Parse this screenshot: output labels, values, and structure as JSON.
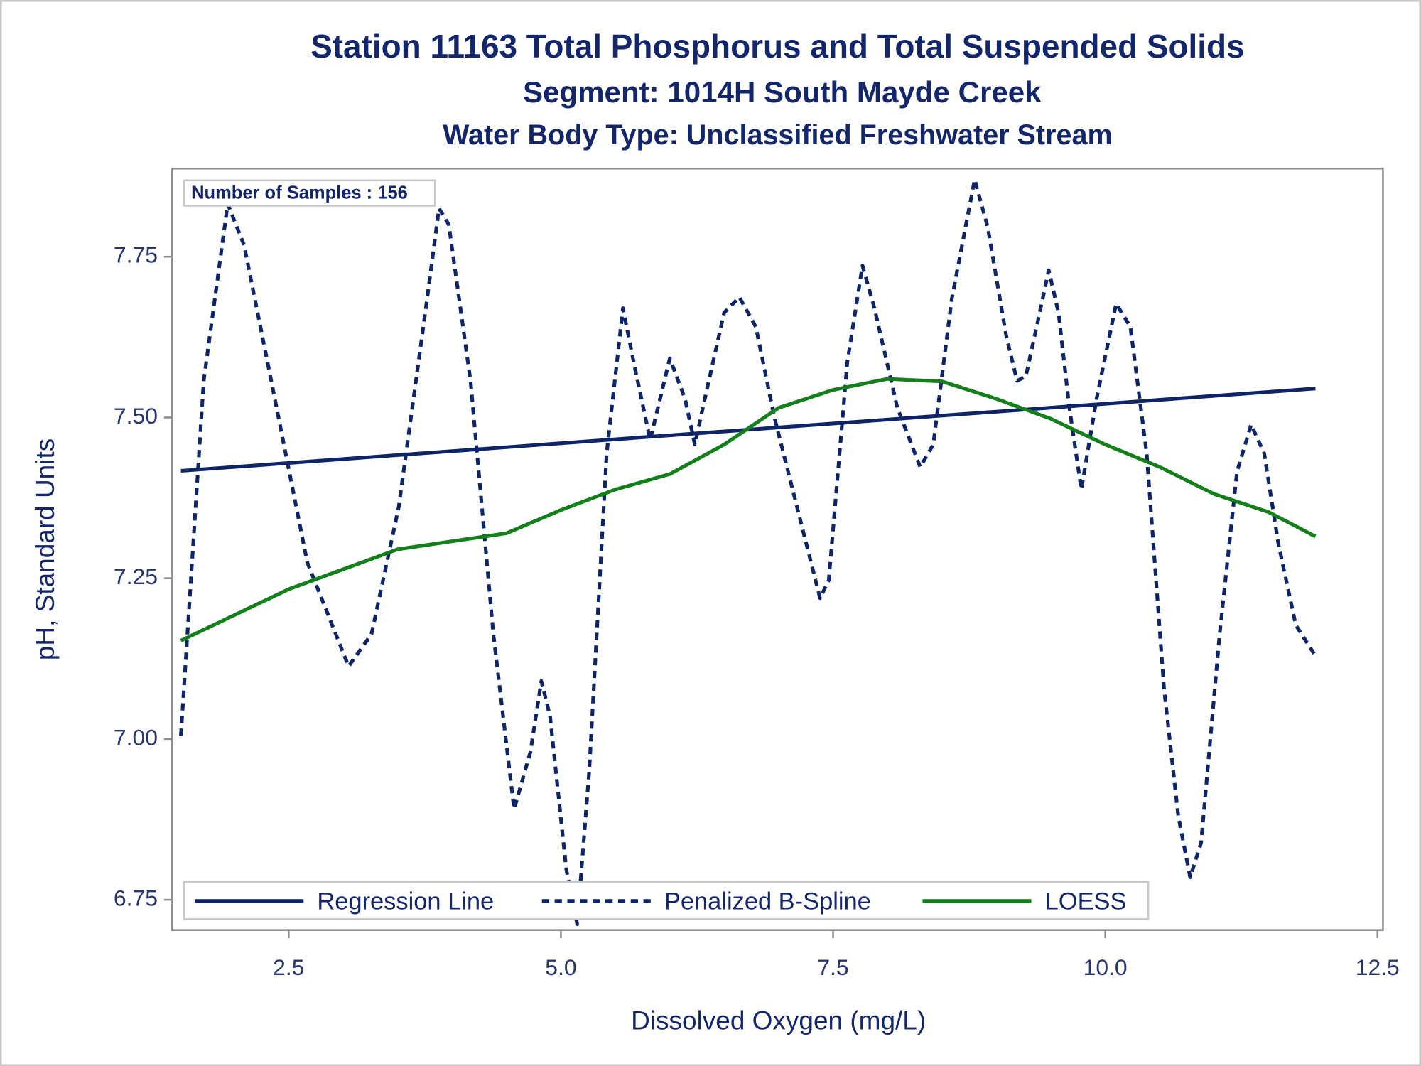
{
  "chart_data": {
    "type": "line",
    "title": "Station 11163  Total Phosphorus and Total Suspended Solids",
    "subtitle": "Segment: 1014H  South Mayde Creek",
    "subtitle2": "Water Body Type: Unclassified Freshwater Stream",
    "annotation": "Number of Samples : 156",
    "x_label": "Dissolved Oxygen (mg/L)",
    "y_label": "pH, Standard Units",
    "xlim": [
      1.43,
      12.55
    ],
    "ylim": [
      6.703,
      7.887
    ],
    "xticks": [
      2.5,
      {
        "value": 5.0,
        "label": "5.0"
      },
      7.5,
      {
        "value": 10.0,
        "label": "10.0"
      },
      12.5
    ],
    "yticks": [
      6.75,
      {
        "value": 7.0,
        "label": "7.00"
      },
      7.25,
      {
        "value": 7.5,
        "label": "7.50"
      },
      7.75
    ],
    "legend": "bottom",
    "series": [
      {
        "name": "Regression Line",
        "color": "#0d2466",
        "linestyle": "solid",
        "x": [
          1.51,
          11.93
        ],
        "values": [
          7.417,
          7.545
        ]
      },
      {
        "name": "Penalized B-Spline",
        "color": "#0d2466",
        "linestyle": "dashed",
        "x": [
          1.51,
          1.72,
          1.94,
          2.09,
          2.34,
          2.67,
          3.05,
          3.26,
          3.51,
          3.76,
          3.88,
          3.97,
          4.17,
          4.38,
          4.57,
          4.72,
          4.82,
          4.9,
          5.05,
          5.15,
          5.26,
          5.42,
          5.57,
          5.67,
          5.82,
          6.0,
          6.14,
          6.23,
          6.34,
          6.5,
          6.64,
          6.79,
          6.96,
          7.17,
          7.38,
          7.46,
          7.63,
          7.77,
          7.88,
          8.09,
          8.3,
          8.42,
          8.59,
          8.8,
          8.92,
          9.09,
          9.19,
          9.27,
          9.38,
          9.48,
          9.57,
          9.67,
          9.78,
          9.92,
          10.1,
          10.23,
          10.38,
          10.54,
          10.67,
          10.78,
          10.88,
          11.05,
          11.21,
          11.34,
          11.46,
          11.59,
          11.75,
          11.92
        ],
        "values": [
          7.005,
          7.557,
          7.832,
          7.768,
          7.557,
          7.275,
          7.113,
          7.163,
          7.36,
          7.67,
          7.825,
          7.8,
          7.557,
          7.163,
          6.891,
          6.98,
          7.09,
          7.036,
          6.797,
          6.712,
          6.951,
          7.444,
          7.67,
          7.585,
          7.465,
          7.592,
          7.529,
          7.458,
          7.543,
          7.663,
          7.687,
          7.641,
          7.501,
          7.36,
          7.219,
          7.247,
          7.585,
          7.736,
          7.67,
          7.515,
          7.423,
          7.458,
          7.684,
          7.87,
          7.796,
          7.627,
          7.557,
          7.564,
          7.649,
          7.729,
          7.663,
          7.515,
          7.388,
          7.529,
          7.677,
          7.641,
          7.444,
          7.078,
          6.881,
          6.785,
          6.839,
          7.163,
          7.416,
          7.489,
          7.444,
          7.303,
          7.177,
          7.132
        ]
      },
      {
        "name": "LOESS",
        "color": "#13801b",
        "linestyle": "solid",
        "x": [
          1.51,
          2.5,
          3.5,
          4.5,
          5.0,
          5.5,
          6.0,
          6.5,
          7.0,
          7.5,
          8.0,
          8.5,
          9.0,
          9.5,
          10.0,
          10.5,
          11.0,
          11.5,
          11.93
        ],
        "values": [
          7.153,
          7.233,
          7.295,
          7.32,
          7.356,
          7.388,
          7.412,
          7.458,
          7.515,
          7.543,
          7.56,
          7.556,
          7.529,
          7.498,
          7.458,
          7.423,
          7.381,
          7.353,
          7.315
        ]
      }
    ]
  }
}
